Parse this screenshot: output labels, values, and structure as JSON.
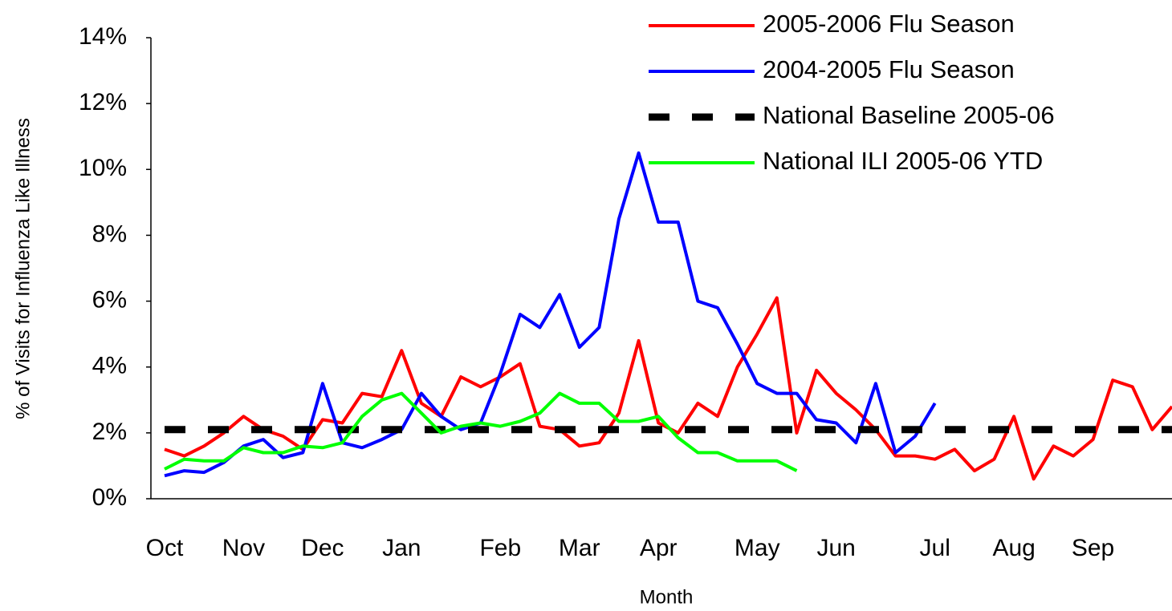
{
  "chart_data": {
    "type": "line",
    "xlabel": "Month",
    "ylabel": "% of Visits for Influenza Like Illness",
    "categories": [
      "Oct",
      null,
      null,
      null,
      "Nov",
      null,
      null,
      null,
      "Dec",
      null,
      null,
      null,
      "Jan",
      null,
      null,
      null,
      null,
      "Feb",
      null,
      null,
      null,
      "Mar",
      null,
      null,
      null,
      "Apr",
      null,
      null,
      null,
      null,
      "May",
      null,
      null,
      null,
      "Jun",
      null,
      null,
      null,
      null,
      "Jul",
      null,
      null,
      null,
      "Aug",
      null,
      null,
      null,
      "Sep",
      null,
      null,
      null,
      null
    ],
    "ylim": [
      0,
      14
    ],
    "yticks": [
      {
        "value": 0,
        "label": "0%"
      },
      {
        "value": 2,
        "label": "2%"
      },
      {
        "value": 4,
        "label": "4%"
      },
      {
        "value": 6,
        "label": "6%"
      },
      {
        "value": 8,
        "label": "8%"
      },
      {
        "value": 10,
        "label": "10%"
      },
      {
        "value": 12,
        "label": "12%"
      },
      {
        "value": 14,
        "label": "14%"
      }
    ],
    "legend": "top-right",
    "series": [
      {
        "name": "2005-2006 Flu Season",
        "color": "#ff0000",
        "style": "solid",
        "values": [
          1.5,
          1.3,
          1.6,
          2.0,
          2.5,
          2.1,
          1.9,
          1.5,
          2.4,
          2.3,
          3.2,
          3.1,
          4.5,
          2.9,
          2.5,
          3.7,
          3.4,
          3.7,
          4.1,
          2.2,
          2.1,
          1.6,
          1.7,
          2.6,
          4.8,
          2.3,
          2.0,
          2.9,
          2.5,
          4.0,
          5.0,
          6.1,
          2.0,
          3.9,
          3.2,
          2.7,
          2.1,
          1.3,
          1.3,
          1.2,
          1.5,
          0.85,
          1.2,
          2.5,
          0.6,
          1.6,
          1.3,
          1.8,
          3.6,
          3.4,
          2.1,
          2.8
        ]
      },
      {
        "name": "2004-2005 Flu Season",
        "color": "#0000ff",
        "style": "solid",
        "values": [
          0.7,
          0.85,
          0.8,
          1.1,
          1.6,
          1.8,
          1.25,
          1.4,
          3.5,
          1.7,
          1.55,
          1.8,
          2.1,
          3.2,
          2.5,
          2.1,
          2.3,
          3.8,
          5.6,
          5.2,
          6.2,
          4.6,
          5.2,
          8.5,
          10.5,
          8.4,
          8.4,
          6.0,
          5.8,
          4.7,
          3.5,
          3.2,
          3.2,
          2.4,
          2.3,
          1.7,
          3.5,
          1.4,
          1.9,
          2.9,
          null,
          null,
          null,
          null,
          null,
          null,
          null,
          null,
          null,
          null,
          null,
          null
        ]
      },
      {
        "name": "National Baseline 2005-06",
        "color": "#000000",
        "style": "dashed",
        "values": [
          2.1,
          2.1,
          2.1,
          2.1,
          2.1,
          2.1,
          2.1,
          2.1,
          2.1,
          2.1,
          2.1,
          2.1,
          2.1,
          2.1,
          2.1,
          2.1,
          2.1,
          2.1,
          2.1,
          2.1,
          2.1,
          2.1,
          2.1,
          2.1,
          2.1,
          2.1,
          2.1,
          2.1,
          2.1,
          2.1,
          2.1,
          2.1,
          2.1,
          2.1,
          2.1,
          2.1,
          2.1,
          2.1,
          2.1,
          2.1,
          2.1,
          2.1,
          2.1,
          2.1,
          2.1,
          2.1,
          2.1,
          2.1,
          2.1,
          2.1,
          2.1,
          2.1
        ]
      },
      {
        "name": "National ILI 2005-06 YTD",
        "color": "#00ff00",
        "style": "solid",
        "values": [
          0.9,
          1.2,
          1.15,
          1.15,
          1.55,
          1.4,
          1.4,
          1.6,
          1.55,
          1.7,
          2.5,
          3.0,
          3.2,
          2.6,
          2.0,
          2.2,
          2.3,
          2.2,
          2.35,
          2.6,
          3.2,
          2.9,
          2.9,
          2.35,
          2.35,
          2.5,
          1.85,
          1.4,
          1.4,
          1.15,
          1.15,
          1.15,
          0.85,
          null,
          null,
          null,
          null,
          null,
          null,
          null,
          null,
          null,
          null,
          null,
          null,
          null,
          null,
          null,
          null,
          null,
          null,
          null
        ]
      }
    ]
  }
}
